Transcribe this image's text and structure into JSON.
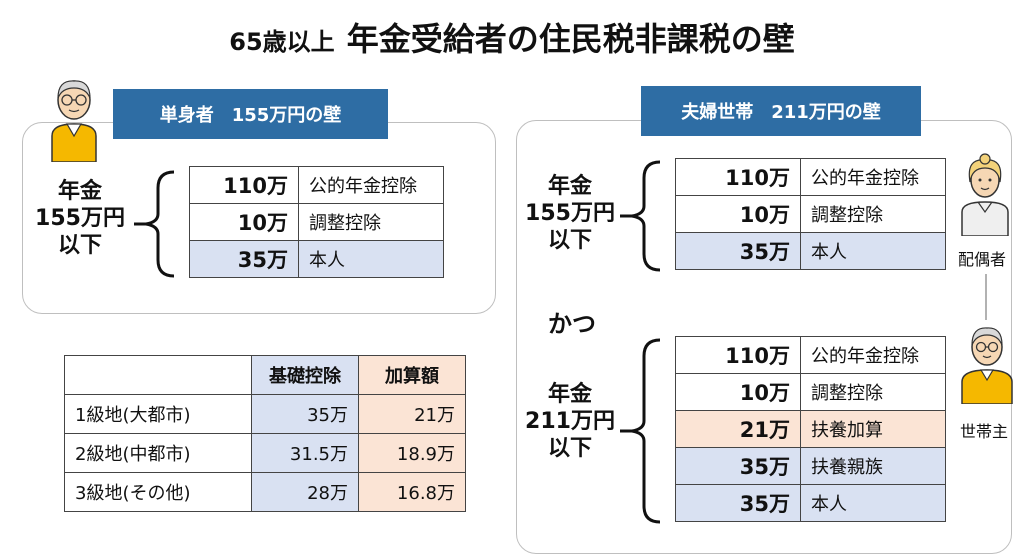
{
  "title": {
    "prefix": "65歳以上",
    "main": "年金受給者の住民税非課税の壁"
  },
  "single": {
    "tag": "単身者　155万円の壁",
    "label": [
      "年金",
      "155万円",
      "以下"
    ],
    "rows": [
      {
        "amount": "110万",
        "item": "公的年金控除"
      },
      {
        "amount": "10万",
        "item": "調整控除"
      },
      {
        "amount": "35万",
        "item": "本人"
      }
    ]
  },
  "couple": {
    "tag": "夫婦世帯　211万円の壁",
    "spouse_label": [
      "年金",
      "155万円",
      "以下"
    ],
    "spouse_rows": [
      {
        "amount": "110万",
        "item": "公的年金控除"
      },
      {
        "amount": "10万",
        "item": "調整控除"
      },
      {
        "amount": "35万",
        "item": "本人"
      }
    ],
    "connector": "かつ",
    "head_label": [
      "年金",
      "211万円",
      "以下"
    ],
    "head_rows": [
      {
        "amount": "110万",
        "item": "公的年金控除"
      },
      {
        "amount": "10万",
        "item": "調整控除"
      },
      {
        "amount": "21万",
        "item": "扶養加算"
      },
      {
        "amount": "35万",
        "item": "扶養親族"
      },
      {
        "amount": "35万",
        "item": "本人"
      }
    ],
    "spouse_caption": "配偶者",
    "head_caption": "世帯主"
  },
  "rate_table": {
    "header": [
      "",
      "基礎控除",
      "加算額"
    ],
    "rows": [
      [
        "1級地(大都市)",
        "35万",
        "21万"
      ],
      [
        "2級地(中都市)",
        "31.5万",
        "18.9万"
      ],
      [
        "3級地(その他)",
        "28万",
        "16.8万"
      ]
    ]
  },
  "colors": {
    "tag_blue": "#2e6da4",
    "cell_blue": "#d9e1f2",
    "cell_peach": "#fbe4d5",
    "shirt_yellow": "#f5b800"
  }
}
